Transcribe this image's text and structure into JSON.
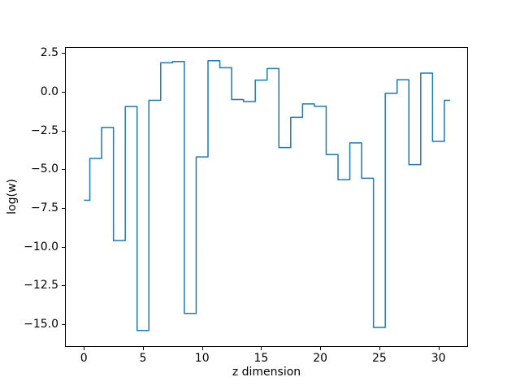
{
  "chart_data": {
    "type": "line",
    "subtype": "step",
    "step_where": "mid",
    "title": "",
    "xlabel": "z dimension",
    "ylabel": "log(w)",
    "line_color": "#1f77b4",
    "line_width": 1.5,
    "grid": false,
    "legend": null,
    "x": [
      0,
      1,
      2,
      3,
      4,
      5,
      6,
      7,
      8,
      9,
      10,
      11,
      12,
      13,
      14,
      15,
      16,
      17,
      18,
      19,
      20,
      21,
      22,
      23,
      24,
      25,
      26,
      27,
      28,
      29,
      30,
      31
    ],
    "values": [
      -7.0,
      -4.3,
      -2.3,
      -9.6,
      -0.95,
      -15.4,
      -0.55,
      1.87,
      1.95,
      -14.3,
      -4.2,
      2.0,
      1.55,
      -0.5,
      -0.63,
      0.75,
      1.5,
      -3.6,
      -1.65,
      -0.78,
      -0.94,
      -4.05,
      -5.67,
      -3.3,
      -5.58,
      -15.2,
      -0.1,
      0.78,
      -4.7,
      1.2,
      -3.2,
      -0.55
    ],
    "xlim": [
      -1.6,
      32.5
    ],
    "ylim": [
      -16.46,
      2.88
    ],
    "xticks": {
      "values": [
        0,
        5,
        10,
        15,
        20,
        25,
        30
      ],
      "labels": [
        "0",
        "5",
        "10",
        "15",
        "20",
        "25",
        "30"
      ]
    },
    "yticks": {
      "values": [
        2.5,
        0.0,
        -2.5,
        -5.0,
        -7.5,
        -10.0,
        -12.5,
        -15.0
      ],
      "labels": [
        "2.5",
        "0.0",
        "−2.5",
        "−5.0",
        "−7.5",
        "−10.0",
        "−12.5",
        "−15.0"
      ]
    }
  }
}
